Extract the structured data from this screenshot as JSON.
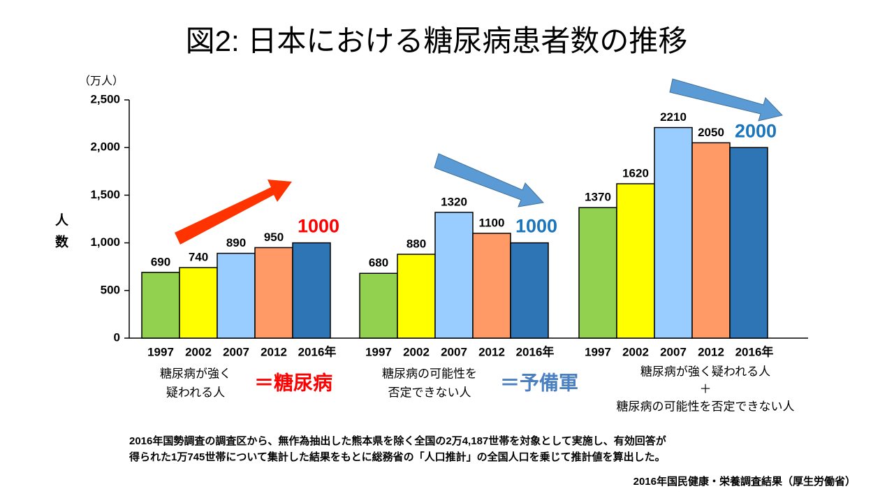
{
  "chart_data": {
    "type": "bar",
    "title": "図2: 日本における糖尿病患者数の推移",
    "y_unit": "（万人）",
    "ylabel": "人数",
    "ylim": [
      0,
      2500
    ],
    "yticks": [
      0,
      500,
      {
        "value": 1000,
        "label": "1,000"
      },
      {
        "value": 1500,
        "label": "1,500"
      },
      {
        "value": 2000,
        "label": "2,000"
      },
      {
        "value": 2500,
        "label": "2,500"
      }
    ],
    "categories": [
      "1997",
      "2002",
      "2007",
      "2012",
      "2016年"
    ],
    "colors": [
      "#92d050",
      "#ffff00",
      "#99ccff",
      "#ff9966",
      "#2e75b6"
    ],
    "groups": [
      {
        "values": [
          690,
          740,
          890,
          950,
          1000
        ],
        "highlight_color": "#ff0000",
        "caption": [
          "糖尿病が強く",
          "疑われる人"
        ],
        "equals": "＝糖尿病",
        "equals_color": "#ff0000"
      },
      {
        "values": [
          680,
          880,
          1320,
          1100,
          1000
        ],
        "highlight_color": "#1a75bc",
        "caption": [
          "糖尿病の可能性を",
          "否定できない人"
        ],
        "equals": "＝予備軍",
        "equals_color": "#4a7fc1"
      },
      {
        "values": [
          1370,
          1620,
          2210,
          2050,
          2000
        ],
        "highlight_color": "#1a75bc",
        "caption": [
          "糖尿病が強く疑われる人",
          "＋",
          "糖尿病の可能性を否定できない人"
        ]
      }
    ],
    "notes": [
      "2016年国勢調査の調査区から、無作為抽出した熊本県を除く全国の2万4,187世帯を対象として実施し、有効回答が",
      "得られた1万745世帯について集計した結果をもとに総務省の「人口推計」の全国人口を乗じて推計値を算出した。"
    ],
    "source": "2016年国民健康・栄養調査結果（厚生労働省）"
  }
}
